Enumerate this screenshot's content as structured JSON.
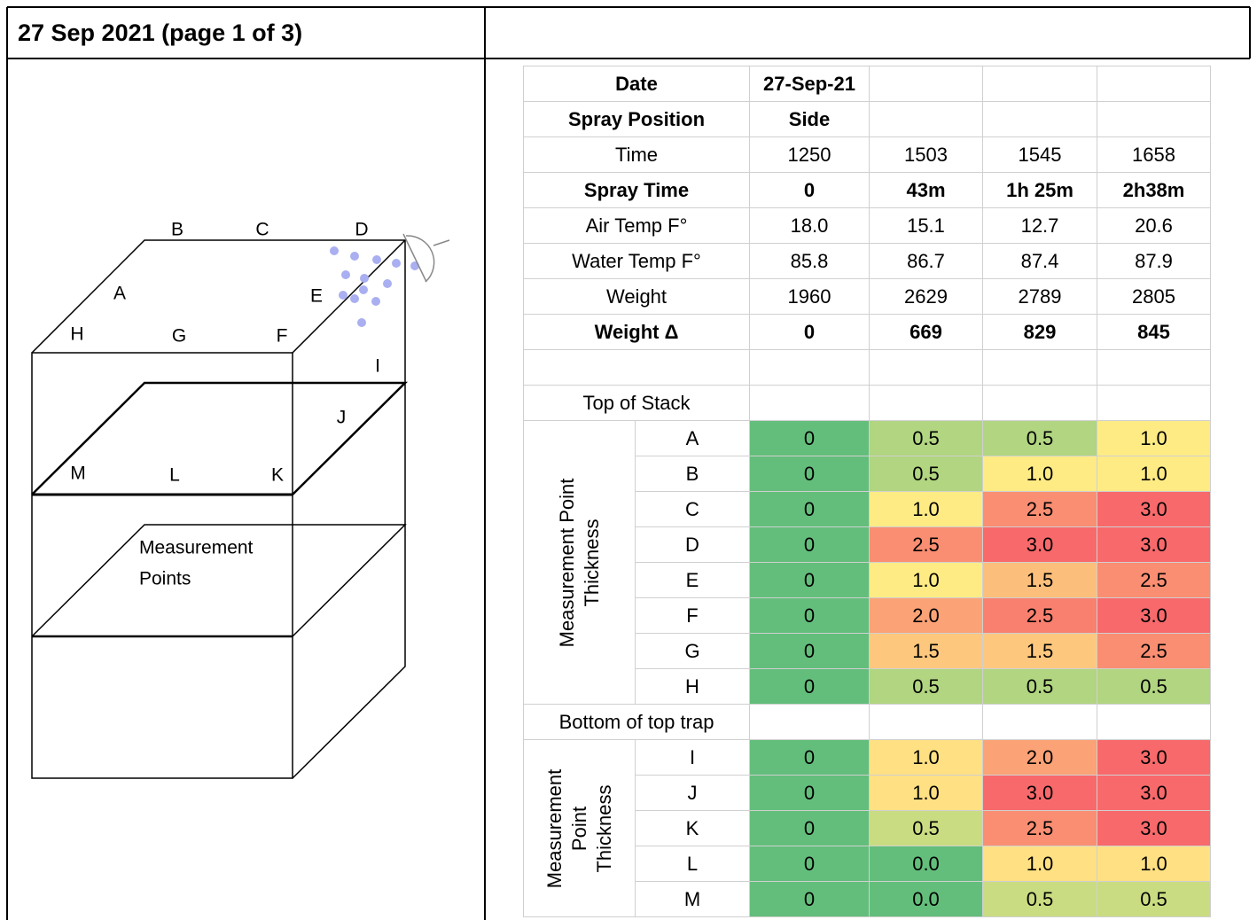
{
  "header": {
    "title": "27 Sep 2021 (page 1 of 3)"
  },
  "diagram": {
    "labels": [
      "A",
      "B",
      "C",
      "D",
      "E",
      "F",
      "G",
      "H",
      "I",
      "J",
      "K",
      "L",
      "M"
    ],
    "caption": [
      "Measurement",
      "Points"
    ]
  },
  "table": {
    "header_rows": [
      {
        "label": "Date",
        "bold": true,
        "cells": [
          "27-Sep-21"
        ]
      },
      {
        "label": "Spray Position",
        "bold": true,
        "cells": [
          "Side"
        ]
      },
      {
        "label": "Time",
        "bold": false,
        "cells": [
          "1250",
          "1503",
          "1545",
          "1658"
        ]
      },
      {
        "label": "Spray Time",
        "bold": true,
        "cells": [
          "0",
          "43m",
          "1h 25m",
          "2h38m"
        ]
      },
      {
        "label": "Air Temp F°",
        "bold": false,
        "cells": [
          "18.0",
          "15.1",
          "12.7",
          "20.6"
        ]
      },
      {
        "label": "Water Temp F°",
        "bold": false,
        "cells": [
          "85.8",
          "86.7",
          "87.4",
          "87.9"
        ]
      },
      {
        "label": "Weight",
        "bold": false,
        "cells": [
          "1960",
          "2629",
          "2789",
          "2805"
        ]
      },
      {
        "label": "Weight Δ",
        "bold": true,
        "cells": [
          "0",
          "669",
          "829",
          "845"
        ]
      }
    ],
    "sections": [
      {
        "title": "Top of Stack",
        "side_label": [
          "Measurement Point",
          "Thickness"
        ],
        "rows": [
          {
            "point": "A",
            "values": [
              "0",
              "0.5",
              "0.5",
              "1.0"
            ],
            "colors": [
              "#63be7b",
              "#b1d580",
              "#b1d580",
              "#ffeb84"
            ]
          },
          {
            "point": "B",
            "values": [
              "0",
              "0.5",
              "1.0",
              "1.0"
            ],
            "colors": [
              "#63be7b",
              "#b1d580",
              "#ffeb84",
              "#ffeb84"
            ]
          },
          {
            "point": "C",
            "values": [
              "0",
              "1.0",
              "2.5",
              "3.0"
            ],
            "colors": [
              "#63be7b",
              "#ffeb84",
              "#fa8e72",
              "#f8696b"
            ]
          },
          {
            "point": "D",
            "values": [
              "0",
              "2.5",
              "3.0",
              "3.0"
            ],
            "colors": [
              "#63be7b",
              "#fa8e72",
              "#f8696b",
              "#f8696b"
            ]
          },
          {
            "point": "E",
            "values": [
              "0",
              "1.0",
              "1.5",
              "2.5"
            ],
            "colors": [
              "#63be7b",
              "#ffeb84",
              "#fcbf7b",
              "#fa8e72"
            ]
          },
          {
            "point": "F",
            "values": [
              "0",
              "2.0",
              "2.5",
              "3.0"
            ],
            "colors": [
              "#63be7b",
              "#fba276",
              "#f9806f",
              "#f8696b"
            ]
          },
          {
            "point": "G",
            "values": [
              "0",
              "1.5",
              "1.5",
              "2.5"
            ],
            "colors": [
              "#63be7b",
              "#fdc87d",
              "#fdc87d",
              "#fa8e72"
            ]
          },
          {
            "point": "H",
            "values": [
              "0",
              "0.5",
              "0.5",
              "0.5"
            ],
            "colors": [
              "#63be7b",
              "#b1d580",
              "#b1d580",
              "#b1d580"
            ]
          }
        ]
      },
      {
        "title": "Bottom of top trap",
        "side_label": [
          "Measurement",
          "Point",
          "Thickness"
        ],
        "rows": [
          {
            "point": "I",
            "values": [
              "0",
              "1.0",
              "2.0",
              "3.0"
            ],
            "colors": [
              "#63be7b",
              "#ffe083",
              "#fba276",
              "#f8696b"
            ]
          },
          {
            "point": "J",
            "values": [
              "0",
              "1.0",
              "3.0",
              "3.0"
            ],
            "colors": [
              "#63be7b",
              "#ffe083",
              "#f8696b",
              "#f8696b"
            ]
          },
          {
            "point": "K",
            "values": [
              "0",
              "0.5",
              "2.5",
              "3.0"
            ],
            "colors": [
              "#63be7b",
              "#c9dc81",
              "#fa8e72",
              "#f8696b"
            ]
          },
          {
            "point": "L",
            "values": [
              "0",
              "0.0",
              "1.0",
              "1.0"
            ],
            "colors": [
              "#63be7b",
              "#63be7b",
              "#ffe083",
              "#ffe083"
            ]
          },
          {
            "point": "M",
            "values": [
              "0",
              "0.0",
              "0.5",
              "0.5"
            ],
            "colors": [
              "#63be7b",
              "#63be7b",
              "#c9dc81",
              "#c9dc81"
            ]
          }
        ]
      }
    ]
  }
}
